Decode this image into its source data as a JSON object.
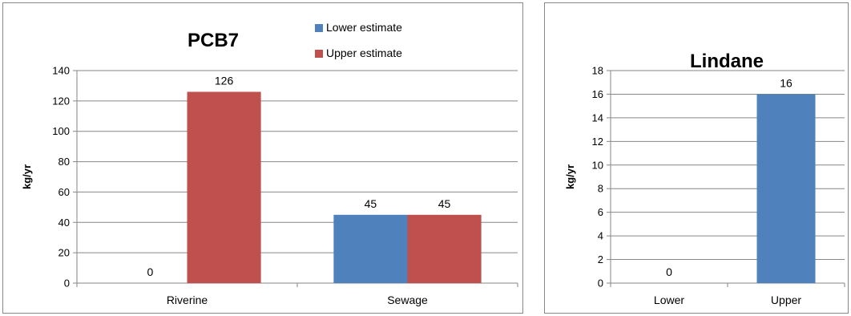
{
  "chart_data": [
    {
      "type": "bar",
      "title": "PCB7",
      "ylabel": "kg/yr",
      "xlabel": "",
      "categories": [
        "Riverine",
        "Sewage"
      ],
      "series": [
        {
          "name": "Lower estimate",
          "color": "#4f81bd",
          "values": [
            0,
            45
          ]
        },
        {
          "name": "Upper estimate",
          "color": "#c0504d",
          "values": [
            126,
            45
          ]
        }
      ],
      "data_labels": [
        [
          "0",
          "45"
        ],
        [
          "126",
          "45"
        ]
      ],
      "ylim": [
        0,
        140
      ],
      "yticks": [
        0,
        20,
        40,
        60,
        80,
        100,
        120,
        140
      ],
      "grid": true,
      "legend": "top-right"
    },
    {
      "type": "bar",
      "title": "Lindane",
      "ylabel": "kg/yr",
      "xlabel": "",
      "categories": [
        "Lower",
        "Upper"
      ],
      "series": [
        {
          "color": "#4f81bd",
          "values": [
            0,
            16
          ]
        }
      ],
      "data_labels": [
        [
          "0",
          "16"
        ]
      ],
      "ylim": [
        0,
        18
      ],
      "yticks": [
        0,
        2,
        4,
        6,
        8,
        10,
        12,
        14,
        16,
        18
      ],
      "grid": true,
      "legend": "none"
    }
  ]
}
